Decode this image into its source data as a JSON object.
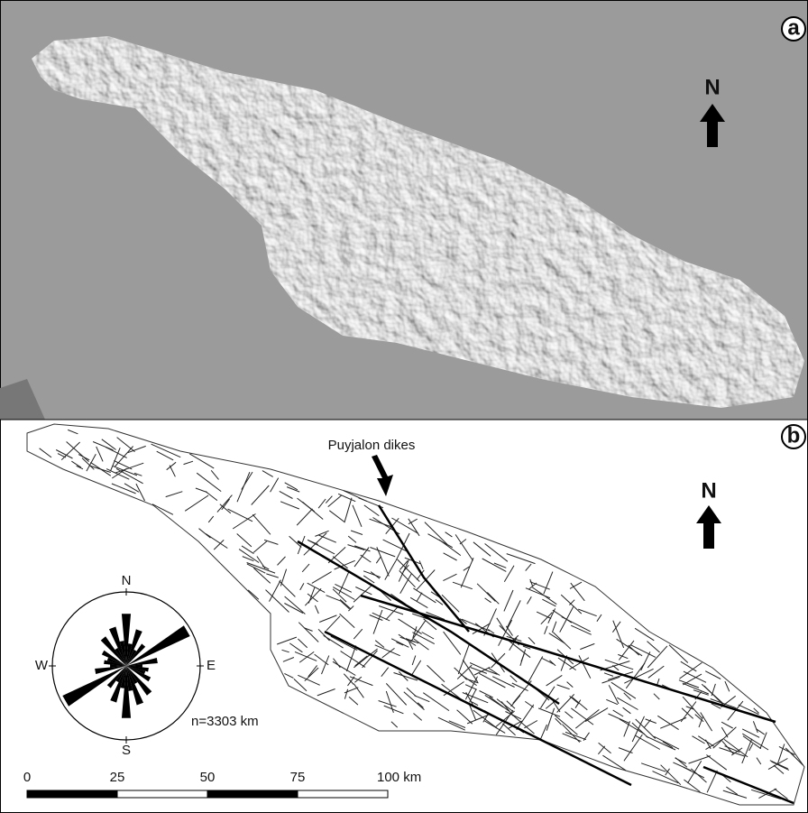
{
  "panel_a": {
    "label": "a",
    "north": "N"
  },
  "panel_b": {
    "label": "b",
    "north": "N",
    "annotation": "Puyjalon dikes",
    "rose": {
      "north": "N",
      "east": "E",
      "south": "S",
      "west": "W",
      "total": "n=3303 km"
    },
    "scale_bar": [
      "0",
      "25",
      "50",
      "75",
      "100 km"
    ]
  }
}
